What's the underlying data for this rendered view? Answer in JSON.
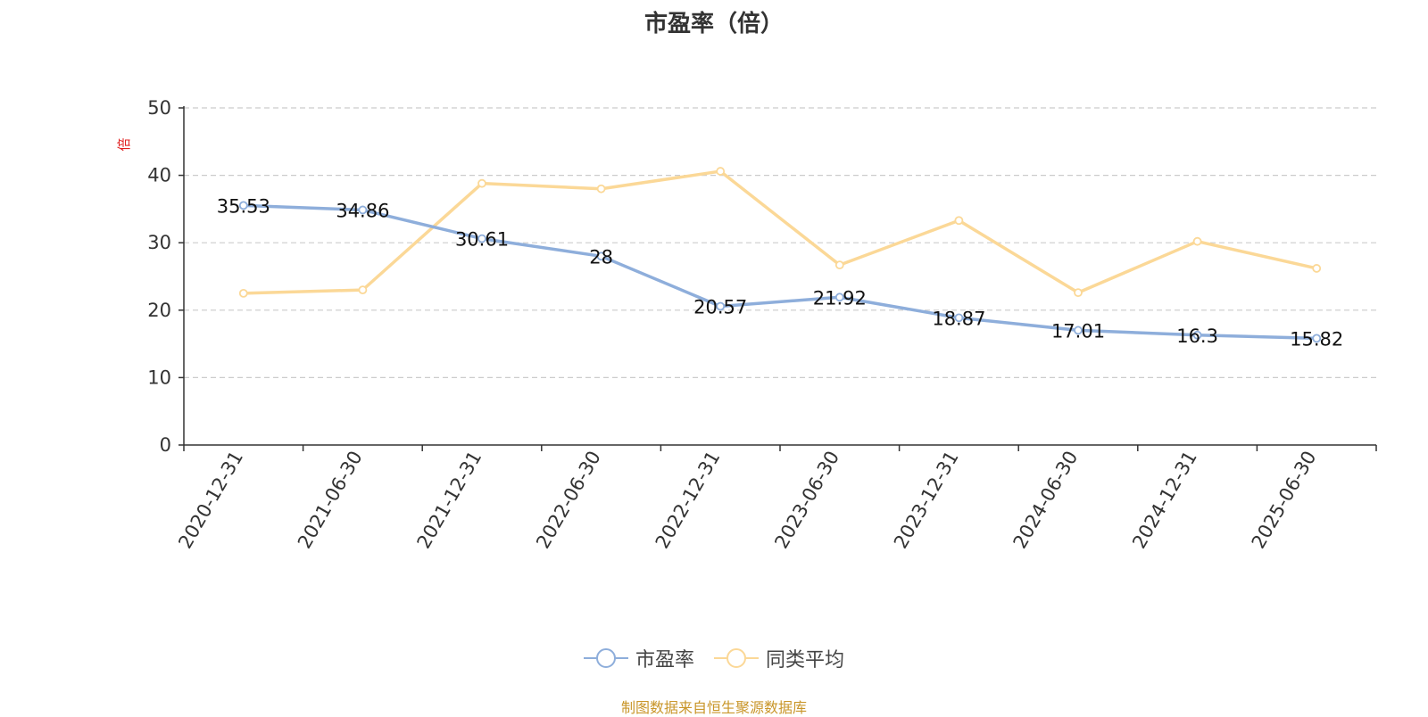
{
  "colors": {
    "series_1": "#8eaedb",
    "series_2": "#fbd897",
    "unit_label": "#e02020",
    "source_note": "#c9962a",
    "grid": "#cccccc",
    "axis": "#333333"
  },
  "legend": {
    "items": [
      {
        "label": "市盈率",
        "icon": "circle-line-icon"
      },
      {
        "label": "同类平均",
        "icon": "circle-line-icon"
      }
    ]
  },
  "source_note": "制图数据来自恒生聚源数据库",
  "chart_data": {
    "type": "line",
    "title": "市盈率（倍）",
    "ylabel": "倍",
    "xlabel": "",
    "ylim": [
      0,
      50
    ],
    "yticks": [
      0,
      10,
      20,
      30,
      40,
      50
    ],
    "grid": true,
    "legend_position": "bottom-center",
    "categories": [
      "2020-12-31",
      "2021-06-30",
      "2021-12-31",
      "2022-06-30",
      "2022-12-31",
      "2023-06-30",
      "2023-12-31",
      "2024-06-30",
      "2024-12-31",
      "2025-06-30"
    ],
    "series": [
      {
        "name": "市盈率",
        "values": [
          35.53,
          34.86,
          30.61,
          28,
          20.57,
          21.92,
          18.87,
          17.01,
          16.3,
          15.82
        ],
        "labels": [
          "35.53",
          "34.86",
          "30.61",
          "28",
          "20.57",
          "21.92",
          "18.87",
          "17.01",
          "16.3",
          "15.82"
        ],
        "show_labels": true
      },
      {
        "name": "同类平均",
        "values": [
          22.5,
          23.0,
          38.8,
          38.0,
          40.6,
          26.7,
          33.3,
          22.6,
          30.2,
          26.2
        ],
        "show_labels": false
      }
    ]
  }
}
